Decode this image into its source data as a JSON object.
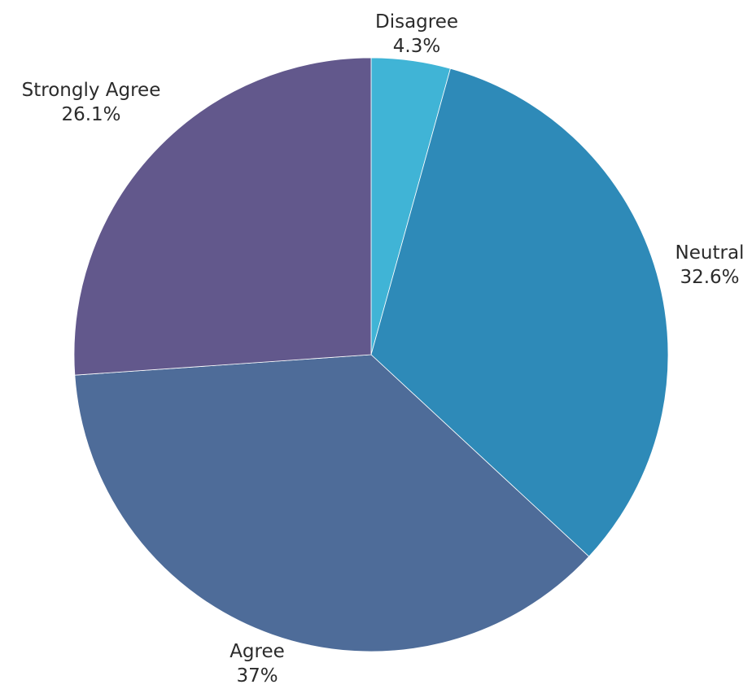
{
  "chart_data": {
    "type": "pie",
    "slices": [
      {
        "label": "Disagree",
        "value_label": "4.3%",
        "value": 4.3,
        "color": "#40b4d6"
      },
      {
        "label": "Neutral",
        "value_label": "32.6%",
        "value": 32.6,
        "color": "#2e8ab8"
      },
      {
        "label": "Agree",
        "value_label": "37%",
        "value": 37.0,
        "color": "#4e6c99"
      },
      {
        "label": "Strongly Agree",
        "value_label": "26.1%",
        "value": 26.1,
        "color": "#62588c"
      }
    ],
    "start": "12 o'clock",
    "direction": "clockwise",
    "legend": "none",
    "title": ""
  }
}
